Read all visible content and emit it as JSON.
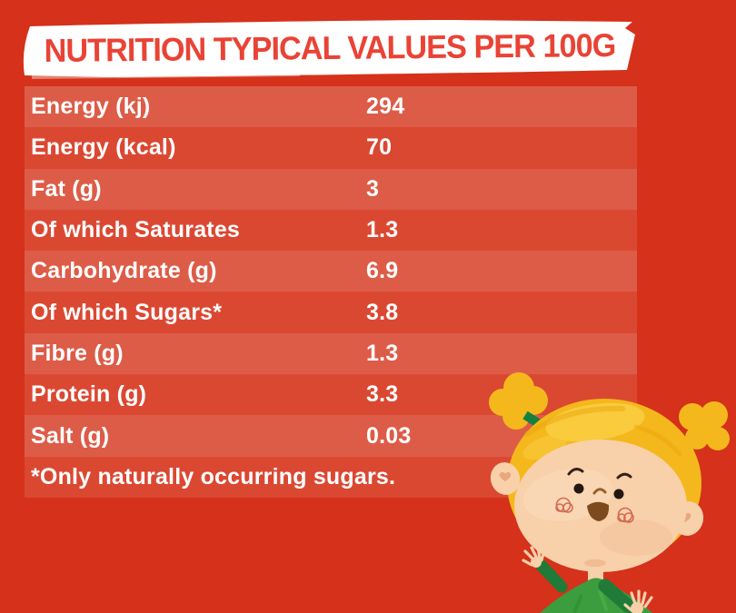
{
  "banner": {
    "title": "NUTRITION TYPICAL VALUES PER 100G"
  },
  "table": {
    "rows": [
      {
        "label": "Energy (kj)",
        "value": "294"
      },
      {
        "label": "Energy (kcal)",
        "value": "70"
      },
      {
        "label": "Fat (g)",
        "value": "3"
      },
      {
        "label": "Of which Saturates",
        "value": "1.3"
      },
      {
        "label": "Carbohydrate (g)",
        "value": "6.9"
      },
      {
        "label": "Of which Sugars*",
        "value": "3.8"
      },
      {
        "label": "Fibre (g)",
        "value": "1.3"
      },
      {
        "label": "Protein (g)",
        "value": "3.3"
      },
      {
        "label": "Salt (g)",
        "value": "0.03"
      }
    ],
    "footnote": "*Only naturally occurring sugars."
  },
  "colors": {
    "background": "#D5311B",
    "row_light": "#DD5C48",
    "row_dark": "#DB4832",
    "banner_bg": "#FFFFFF",
    "banner_text": "#E94335",
    "banner_smear": "#F5C7BC",
    "table_text": "#FFFFFF",
    "hair": "#F4B81C",
    "hair_light": "#F9CE43",
    "hair_dark": "#E8A30B",
    "skin": "#F8D0A9",
    "skin_light": "#FCE0C2",
    "skin_shadow": "#E8A87E",
    "shirt": "#3B9D3D",
    "shirt_dark": "#2E8A33",
    "shirt_light": "#54B04A",
    "sleeve": "#1F7B37",
    "tie": "#14813F",
    "mouth": "#7D4A1E",
    "cheek": "#CE5944",
    "eye": "#231712",
    "brow": "#33231A",
    "nose": "#96602C"
  }
}
